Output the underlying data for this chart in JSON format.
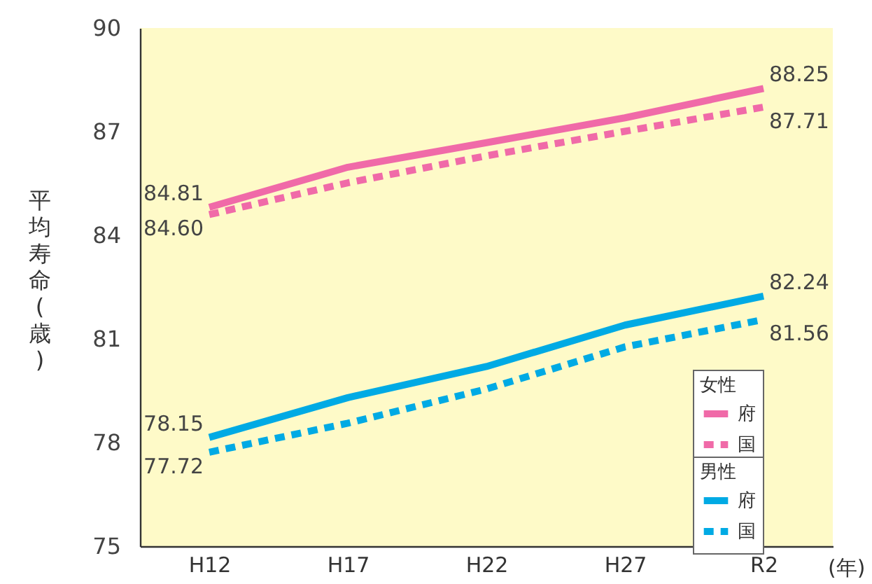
{
  "chart_data": {
    "type": "line",
    "xlabel": "(年)",
    "ylabel": "平均寿命(歳)",
    "legend_title": [
      "女性",
      "男性"
    ],
    "categories": [
      "H12",
      "H17",
      "H22",
      "H27",
      "R2"
    ],
    "ylim": [
      75,
      90
    ],
    "yticks": [
      75,
      78,
      81,
      84,
      87,
      90
    ],
    "grid": false,
    "legend": "bottom right",
    "marker": "none",
    "series": [
      {
        "name": "府",
        "color": "#f06aa8",
        "line_style": "solid",
        "values": [
          84.81,
          85.97,
          86.68,
          87.4,
          88.25
        ],
        "value_labels": [
          "84.81",
          null,
          null,
          null,
          "88.25"
        ]
      },
      {
        "name": "国",
        "color": "#f06aa8",
        "line_style": "dashed",
        "values": [
          84.6,
          85.52,
          86.3,
          87.01,
          87.71
        ],
        "value_labels": [
          "84.60",
          null,
          null,
          null,
          "87.71"
        ]
      },
      {
        "name": "府",
        "color": "#00aae4",
        "line_style": "solid",
        "values": [
          78.15,
          79.3,
          80.2,
          81.4,
          82.24
        ],
        "value_labels": [
          "78.15",
          null,
          null,
          null,
          "82.24"
        ]
      },
      {
        "name": "国",
        "color": "#00aae4",
        "line_style": "dashed",
        "values": [
          77.72,
          78.56,
          79.55,
          80.77,
          81.56
        ],
        "value_labels": [
          "77.72",
          null,
          null,
          null,
          "81.56"
        ]
      }
    ]
  }
}
